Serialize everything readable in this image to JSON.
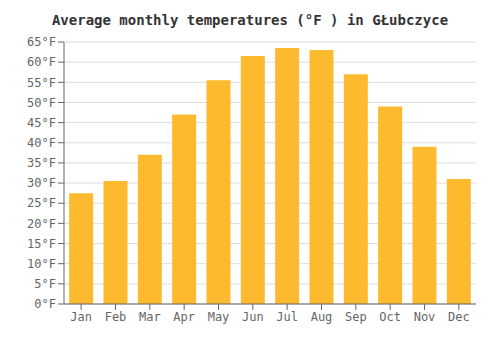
{
  "chart_data": {
    "type": "bar",
    "title": "Average monthly temperatures (°F ) in GŁubczyce",
    "categories": [
      "Jan",
      "Feb",
      "Mar",
      "Apr",
      "May",
      "Jun",
      "Jul",
      "Aug",
      "Sep",
      "Oct",
      "Nov",
      "Dec"
    ],
    "values": [
      27.5,
      30.5,
      37,
      47,
      55.5,
      61.5,
      63.5,
      63,
      57,
      49,
      39,
      31
    ],
    "color": "#FDBA2E",
    "ylim": [
      0,
      65
    ],
    "yticks": [
      {
        "value": 0,
        "label": "0°F"
      },
      {
        "value": 5,
        "label": "5°F"
      },
      {
        "value": 10,
        "label": "10°F"
      },
      {
        "value": 15,
        "label": "15°F"
      },
      {
        "value": 20,
        "label": "20°F"
      },
      {
        "value": 25,
        "label": "25°F"
      },
      {
        "value": 30,
        "label": "30°F"
      },
      {
        "value": 35,
        "label": "35°F"
      },
      {
        "value": 40,
        "label": "40°F"
      },
      {
        "value": 45,
        "label": "45°F"
      },
      {
        "value": 50,
        "label": "50°F"
      },
      {
        "value": 55,
        "label": "55°F"
      },
      {
        "value": 60,
        "label": "60°F"
      },
      {
        "value": 65,
        "label": "65°F"
      }
    ],
    "grid": true
  }
}
